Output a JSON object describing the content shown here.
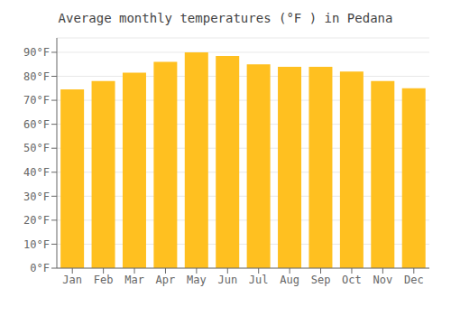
{
  "chart_data": {
    "type": "bar",
    "title": "Average monthly temperatures (°F ) in Pedana",
    "categories": [
      "Jan",
      "Feb",
      "Mar",
      "Apr",
      "May",
      "Jun",
      "Jul",
      "Aug",
      "Sep",
      "Oct",
      "Nov",
      "Dec"
    ],
    "values": [
      74.5,
      78.0,
      81.5,
      86.0,
      90.0,
      88.5,
      85.0,
      84.0,
      84.0,
      82.0,
      78.0,
      75.0
    ],
    "color": "#FFC020",
    "ylim": [
      0,
      96
    ],
    "yticks": [
      {
        "value": 0,
        "label": "0°F"
      },
      {
        "value": 10,
        "label": "10°F"
      },
      {
        "value": 20,
        "label": "20°F"
      },
      {
        "value": 30,
        "label": "30°F"
      },
      {
        "value": 40,
        "label": "40°F"
      },
      {
        "value": 50,
        "label": "50°F"
      },
      {
        "value": 60,
        "label": "60°F"
      },
      {
        "value": 70,
        "label": "70°F"
      },
      {
        "value": 80,
        "label": "80°F"
      },
      {
        "value": 90,
        "label": "90°F"
      }
    ],
    "grid": true
  }
}
